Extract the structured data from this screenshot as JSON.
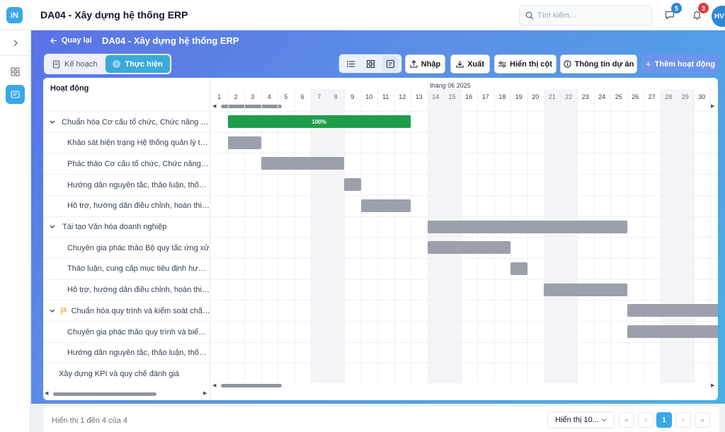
{
  "app": {
    "logo": "iN",
    "title": "DA04 - Xây dựng hệ thống ERP"
  },
  "header": {
    "search_placeholder": "Tìm kiếm...",
    "messages_count": "5",
    "notifications_count": "3",
    "avatar_initials": "HV",
    "colors": {
      "messages_badge": "#2f86d6",
      "notifications_badge": "#e0393e"
    }
  },
  "main": {
    "back_label": "Quay lại",
    "project_title": "DA04 - Xây dựng hệ thống ERP",
    "modes": [
      {
        "label": "Kế hoạch",
        "active": false
      },
      {
        "label": "Thực hiện",
        "active": true
      }
    ],
    "toolbar": {
      "import_label": "Nhập",
      "export_label": "Xuất",
      "columns_label": "Hiển thị cột",
      "info_label": "Thông tin dự án",
      "add_label": "Thêm hoạt động"
    }
  },
  "gantt": {
    "column_header": "Hoạt động",
    "month_label": "tháng 06 2025",
    "days": [
      "1",
      "2",
      "3",
      "4",
      "5",
      "6",
      "7",
      "8",
      "9",
      "10",
      "11",
      "12",
      "13",
      "14",
      "15",
      "16",
      "17",
      "18",
      "19",
      "20",
      "21",
      "22",
      "23",
      "24",
      "25",
      "26",
      "27",
      "28",
      "29",
      "30"
    ],
    "weekend_days": [
      7,
      8,
      14,
      15,
      21,
      22,
      28,
      29
    ],
    "tasks": [
      {
        "label": "Chuẩn hóa Cơ cấu tổ chức, Chức năng nhiệ...",
        "group": true,
        "start": 2,
        "end": 12,
        "progress_label": "100%"
      },
      {
        "label": "Khảo sát hiện trạng Hệ thống quản lý tại...",
        "group": false,
        "start": 2,
        "end": 3
      },
      {
        "label": "Phác thảo Cơ cấu tổ chức, Chức năng nh...",
        "group": false,
        "start": 4,
        "end": 8
      },
      {
        "label": "Hướng dẫn nguyên tắc, thảo luận, thống...",
        "group": false,
        "start": 9,
        "end": 9
      },
      {
        "label": "Hỗ trợ, hướng dẫn điều chỉnh, hoàn thiện",
        "group": false,
        "start": 10,
        "end": 12
      },
      {
        "label": "Tái tạo Văn hóa doanh nghiệp",
        "group": true,
        "start": 14,
        "end": 25
      },
      {
        "label": "Chuyên gia phác thảo Bộ quy tắc ứng xử",
        "group": false,
        "start": 14,
        "end": 18
      },
      {
        "label": "Thảo luận, cung cấp mục tiêu định hướng",
        "group": false,
        "start": 19,
        "end": 19
      },
      {
        "label": "Hỗ trợ, hướng dẫn điều chỉnh, hoàn thiện",
        "group": false,
        "start": 21,
        "end": 25
      },
      {
        "label": "Chuẩn hóa quy trình và kiểm soát chất l...",
        "group": true,
        "flag": true,
        "start": 26,
        "end": 31
      },
      {
        "label": "Chuyên gia phác thảo quy trình và biểu ...",
        "group": false,
        "start": 26,
        "end": 31
      },
      {
        "label": "Hướng dẫn nguyên tắc, thảo luận, thống...",
        "group": false
      },
      {
        "label": "Xây dựng KPI và quy chế đánh giá",
        "group": false,
        "top_level": true
      }
    ]
  },
  "footer": {
    "summary": "Hiển thị 1 đến 4 của 4",
    "page_size_label": "Hiển thị 10...",
    "current_page": "1"
  }
}
